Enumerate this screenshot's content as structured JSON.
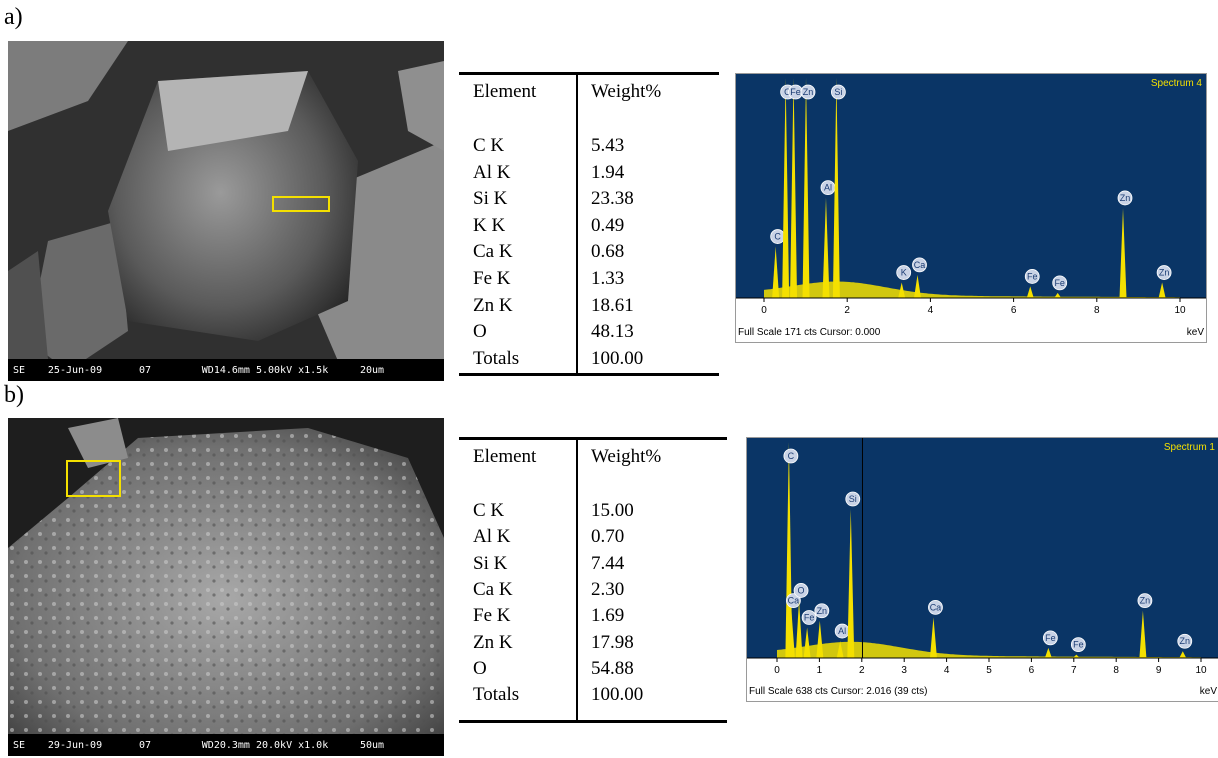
{
  "panels": [
    {
      "label": "a)",
      "sem": {
        "detector": "SE",
        "date": "25-Jun-09",
        "frame": "07",
        "params": "WD14.6mm 5.00kV x1.5k",
        "scale": "20um"
      },
      "table": {
        "headers": [
          "Element",
          "Weight%"
        ],
        "rows": [
          [
            "C K",
            "5.43"
          ],
          [
            "Al K",
            "1.94"
          ],
          [
            "Si K",
            "23.38"
          ],
          [
            "K K",
            "0.49"
          ],
          [
            "Ca K",
            "0.68"
          ],
          [
            "Fe K",
            "1.33"
          ],
          [
            "Zn K",
            "18.61"
          ],
          [
            "O",
            "48.13"
          ],
          [
            "Totals",
            "100.00"
          ]
        ]
      },
      "spectrum": {
        "title": "Spectrum 4",
        "footer_left": "Full Scale 171 cts Cursor: 0.000",
        "footer_right": "keV",
        "x_ticks": [
          "0",
          "2",
          "4",
          "6",
          "8",
          "10"
        ]
      }
    },
    {
      "label": "b)",
      "sem": {
        "detector": "SE",
        "date": "29-Jun-09",
        "frame": "07",
        "params": "WD20.3mm 20.0kV x1.0k",
        "scale": "50um"
      },
      "table": {
        "headers": [
          "Element",
          "Weight%"
        ],
        "rows": [
          [
            "C K",
            "15.00"
          ],
          [
            "Al K",
            "0.70"
          ],
          [
            "Si K",
            "7.44"
          ],
          [
            "Ca K",
            "2.30"
          ],
          [
            "Fe K",
            "1.69"
          ],
          [
            "Zn K",
            "17.98"
          ],
          [
            "O",
            "54.88"
          ],
          [
            "Totals",
            "100.00"
          ]
        ]
      },
      "spectrum": {
        "title": "Spectrum 1",
        "footer_left": "Full Scale 638 cts Cursor: 2.016  (39 cts)",
        "footer_right": "keV",
        "x_ticks": [
          "0",
          "1",
          "2",
          "3",
          "4",
          "5",
          "6",
          "7",
          "8",
          "9",
          "10"
        ]
      }
    }
  ],
  "colors": {
    "spectrum_bg": "#0a3566",
    "spectrum_peaks": "#f4e000",
    "roi_box": "#f4e000",
    "peak_marker": "#c9d3e6"
  },
  "chart_data": [
    {
      "type": "area",
      "title": "Spectrum 4",
      "xlabel": "keV",
      "xlim": [
        0,
        10
      ],
      "full_scale_cts": 171,
      "peaks": [
        {
          "label": "C",
          "x": 0.28,
          "y": 40
        },
        {
          "label": "O",
          "x": 0.52,
          "y": 171
        },
        {
          "label": "Fe",
          "x": 0.71,
          "y": 171
        },
        {
          "label": "Zn",
          "x": 1.01,
          "y": 171
        },
        {
          "label": "Al",
          "x": 1.49,
          "y": 78
        },
        {
          "label": "Si",
          "x": 1.74,
          "y": 171
        },
        {
          "label": "K",
          "x": 3.31,
          "y": 12
        },
        {
          "label": "Ca",
          "x": 3.69,
          "y": 18
        },
        {
          "label": "Fe",
          "x": 6.4,
          "y": 9
        },
        {
          "label": "Fe",
          "x": 7.06,
          "y": 4
        },
        {
          "label": "Zn",
          "x": 8.63,
          "y": 70
        },
        {
          "label": "Zn",
          "x": 9.57,
          "y": 12
        }
      ]
    },
    {
      "type": "area",
      "title": "Spectrum 1",
      "xlabel": "keV",
      "xlim": [
        0,
        10
      ],
      "full_scale_cts": 638,
      "cursor_keV": 2.016,
      "cursor_cts": 39,
      "peaks": [
        {
          "label": "C",
          "x": 0.28,
          "y": 638
        },
        {
          "label": "Ca",
          "x": 0.34,
          "y": 140
        },
        {
          "label": "O",
          "x": 0.52,
          "y": 170
        },
        {
          "label": "Fe",
          "x": 0.71,
          "y": 90
        },
        {
          "label": "Zn",
          "x": 1.01,
          "y": 110
        },
        {
          "label": "Al",
          "x": 1.49,
          "y": 50
        },
        {
          "label": "Si",
          "x": 1.74,
          "y": 440
        },
        {
          "label": "Ca",
          "x": 3.69,
          "y": 120
        },
        {
          "label": "Fe",
          "x": 6.4,
          "y": 30
        },
        {
          "label": "Fe",
          "x": 7.06,
          "y": 10
        },
        {
          "label": "Zn",
          "x": 8.63,
          "y": 140
        },
        {
          "label": "Zn",
          "x": 9.57,
          "y": 20
        }
      ]
    }
  ]
}
